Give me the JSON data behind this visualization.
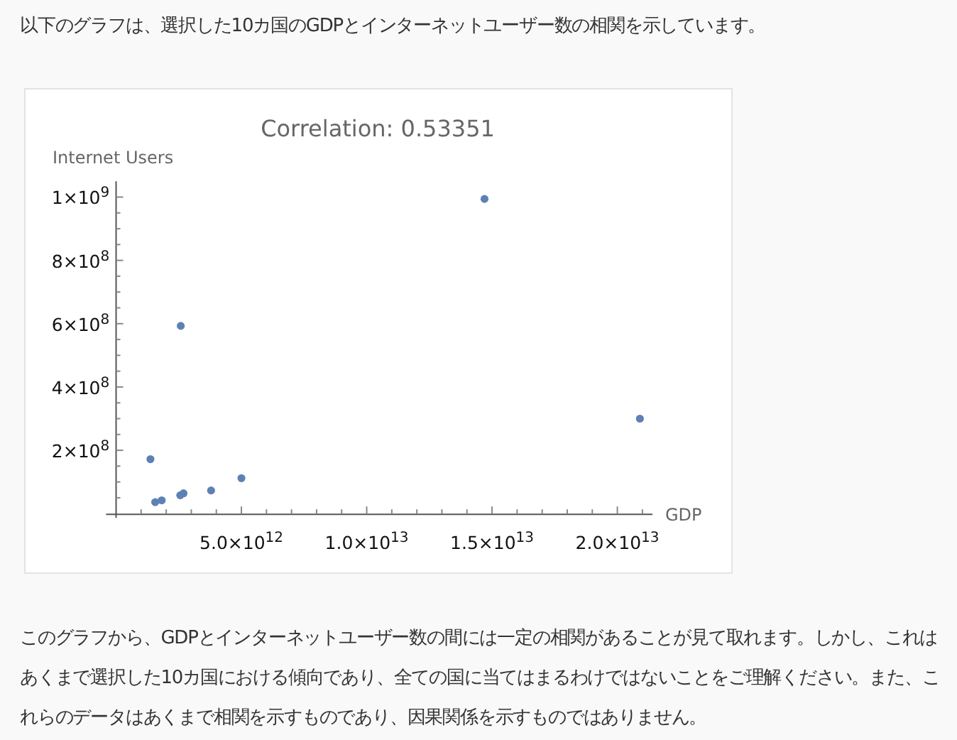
{
  "chart_data": {
    "type": "scatter",
    "title": "Correlation: 0.53351",
    "xlabel": "GDP",
    "ylabel": "Internet Users",
    "annotations": [
      "以下のグラフは、選択した10カ国のGDPとインターネットユーザー数の相関を示しています。",
      "このグラフから、GDPとインターネットユーザー数の間には一定の相関があることが見て取れます。しかし、これはあくまで選択した10カ国における傾向であり、全ての国に当てはまるわけではないことをご理解ください。また、これらのデータはあくまで相関を示すものであり、因果関係を示すものではありません。"
    ],
    "x": [
      1370000000000.0,
      1560000000000.0,
      1820000000000.0,
      2560000000000.0,
      2690000000000.0,
      2580000000000.0,
      3790000000000.0,
      5000000000000.0,
      14700000000000.0,
      20900000000000.0
    ],
    "values": [
      172000000.0,
      36000000.0,
      42000000.0,
      58000000.0,
      64000000.0,
      593000000.0,
      73000000.0,
      112000000.0,
      994000000.0,
      300000000.0
    ],
    "color": "#5e81b5",
    "marker": "circle",
    "xlim": [
      -400000000000.0,
      21400000000000.0
    ],
    "ylim": [
      0,
      1050000000.0
    ],
    "xticks": [
      {
        "value": 5000000000000.0,
        "label": "5.0×10$^{12}$"
      },
      {
        "value": 10000000000000.0,
        "label": "1.0×10$^{13}$"
      },
      {
        "value": 15000000000000.0,
        "label": "1.5×10$^{13}$"
      },
      {
        "value": 20000000000000.0,
        "label": "2.0×10$^{13}$"
      },
      {
        "value": 1000000000000.0,
        "label": null
      },
      {
        "value": 2000000000000.0,
        "label": null
      },
      {
        "value": 3000000000000.0,
        "label": null
      },
      {
        "value": 4000000000000.0,
        "label": null
      },
      {
        "value": 6000000000000.0,
        "label": null
      },
      {
        "value": 7000000000000.0,
        "label": null
      },
      {
        "value": 8000000000000.0,
        "label": null
      },
      {
        "value": 9000000000000.0,
        "label": null
      },
      {
        "value": 11000000000000.0,
        "label": null
      },
      {
        "value": 12000000000000.0,
        "label": null
      },
      {
        "value": 13000000000000.0,
        "label": null
      },
      {
        "value": 14000000000000.0,
        "label": null
      },
      {
        "value": 16000000000000.0,
        "label": null
      },
      {
        "value": 17000000000000.0,
        "label": null
      },
      {
        "value": 18000000000000.0,
        "label": null
      },
      {
        "value": 19000000000000.0,
        "label": null
      },
      {
        "value": 21000000000000.0,
        "label": null
      }
    ],
    "yticks": [
      {
        "value": 200000000.0,
        "label": "2×10$^{8}$"
      },
      {
        "value": 400000000.0,
        "label": "4×10$^{8}$"
      },
      {
        "value": 600000000.0,
        "label": "6×10$^{8}$"
      },
      {
        "value": 800000000.0,
        "label": "8×10$^{8}$"
      },
      {
        "value": 1000000000.0,
        "label": "1×10$^{9}$"
      },
      {
        "value": 50000000.0,
        "label": null
      },
      {
        "value": 100000000.0,
        "label": null
      },
      {
        "value": 150000000.0,
        "label": null
      },
      {
        "value": 250000000.0,
        "label": null
      },
      {
        "value": 300000000.0,
        "label": null
      },
      {
        "value": 350000000.0,
        "label": null
      },
      {
        "value": 450000000.0,
        "label": null
      },
      {
        "value": 500000000.0,
        "label": null
      },
      {
        "value": 550000000.0,
        "label": null
      },
      {
        "value": 650000000.0,
        "label": null
      },
      {
        "value": 700000000.0,
        "label": null
      },
      {
        "value": 750000000.0,
        "label": null
      },
      {
        "value": 850000000.0,
        "label": null
      },
      {
        "value": 900000000.0,
        "label": null
      },
      {
        "value": 950000000.0,
        "label": null
      }
    ]
  }
}
